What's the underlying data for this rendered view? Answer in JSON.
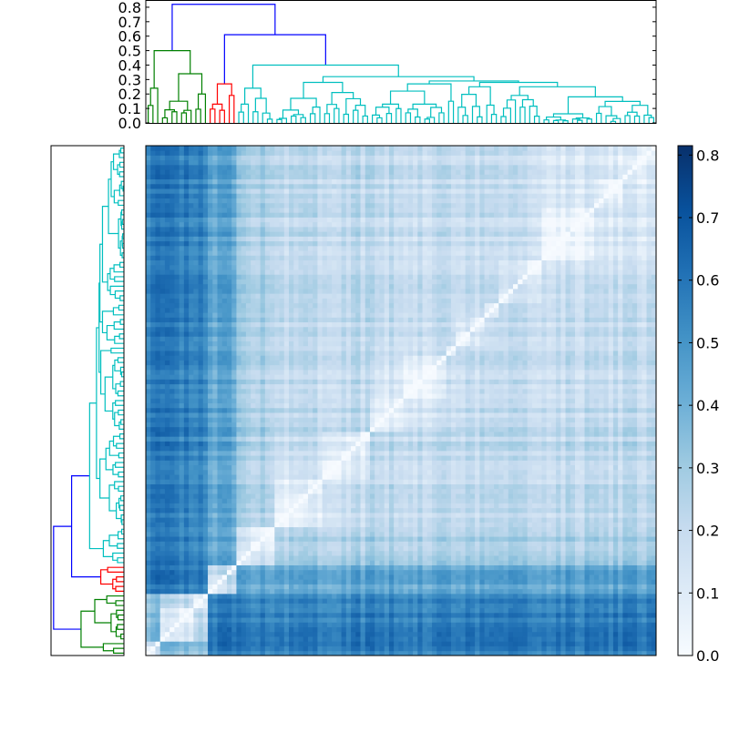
{
  "chart_data": {
    "type": "heatmap",
    "title": "",
    "description_of_layout": "",
    "top_dendrogram": {
      "ylim": [
        0,
        0.85
      ],
      "yticks": [
        "0.0",
        "0.1",
        "0.2",
        "0.3",
        "0.4",
        "0.5",
        "0.6",
        "0.7",
        "0.8"
      ]
    },
    "left_dendrogram": {
      "xlim": [
        0,
        0.85
      ],
      "ticks_shown": false
    },
    "colorbar": {
      "colormap": "Blues",
      "vmin": 0.0,
      "vmax": 0.815,
      "ticks": [
        "0.0",
        "0.1",
        "0.2",
        "0.3",
        "0.4",
        "0.5",
        "0.6",
        "0.7",
        "0.8"
      ]
    },
    "colors": {
      "above_threshold": "#0000ff",
      "cluster_green": "#008000",
      "cluster_red": "#ff0000",
      "cluster_cyan": "#00bfbf",
      "colormap_stops": [
        "#f7fbff",
        "#deebf7",
        "#c6dbef",
        "#9ecae1",
        "#6baed6",
        "#4292c6",
        "#2171b5",
        "#08519c",
        "#08306b"
      ]
    },
    "heatmap_value": "cophenetic distance between leaves (diagonal 0)",
    "tree": {
      "h": 0.82,
      "children": [
        {
          "h": 0.5,
          "color": "#008000",
          "children": [
            {
              "n": 3,
              "h": 0.24
            },
            {
              "h": 0.34,
              "children": [
                {
                  "n": 7,
                  "h": 0.15
                },
                {
                  "n": 3,
                  "h": 0.2
                }
              ]
            }
          ]
        },
        {
          "h": 0.61,
          "children": [
            {
              "h": 0.27,
              "color": "#ff0000",
              "children": [
                {
                  "n": 4,
                  "h": 0.13
                },
                {
                  "n": 2,
                  "h": 0.19
                }
              ]
            },
            {
              "h": 0.4,
              "color": "#00bfbf",
              "children": [
                {
                  "h": 0.24,
                  "children": [
                    {
                      "n": 3,
                      "h": 0.13
                    },
                    {
                      "n": 5,
                      "h": 0.17
                    }
                  ]
                },
                {
                  "h": 0.32,
                  "children": [
                    {
                      "h": 0.28,
                      "children": [
                        {
                          "n": 10,
                          "h": 0.17
                        },
                        {
                          "n": 10,
                          "h": 0.21
                        }
                      ]
                    },
                    {
                      "h": 0.29,
                      "children": [
                        {
                          "h": 0.27,
                          "children": [
                            {
                              "h": 0.22,
                              "children": [
                                {
                                  "n": 7,
                                  "h": 0.13
                                },
                                {
                                  "n": 9,
                                  "h": 0.13
                                }
                              ]
                            },
                            {
                              "n": 2,
                              "h": 0.15
                            }
                          ]
                        },
                        {
                          "h": 0.28,
                          "children": [
                            {
                              "n": 9,
                              "h": 0.25
                            },
                            {
                              "h": 0.25,
                              "children": [
                                {
                                  "n": 9,
                                  "h": 0.19
                                },
                                {
                                  "n": 24,
                                  "h": 0.18
                                }
                              ]
                            }
                          ]
                        }
                      ]
                    }
                  ]
                }
              ]
            }
          ]
        }
      ]
    }
  }
}
